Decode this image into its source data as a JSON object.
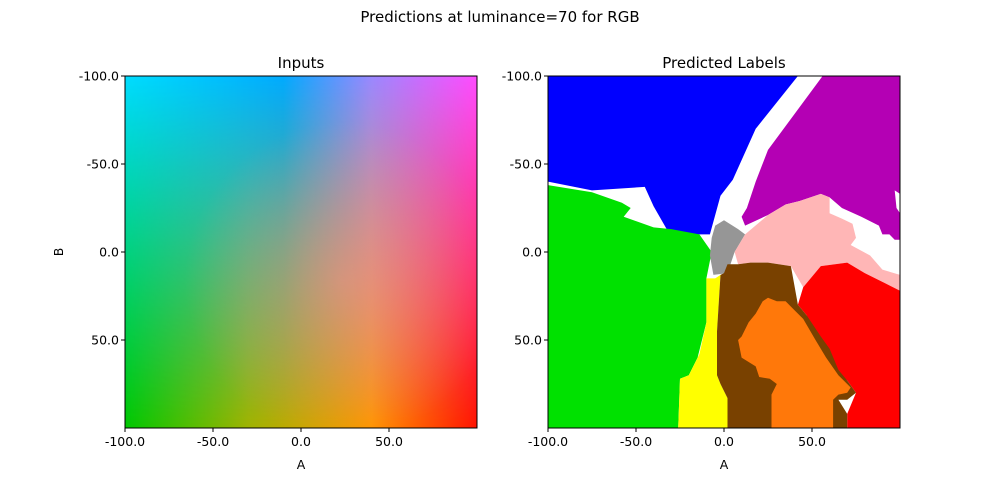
{
  "chart_data": [
    {
      "type": "heatmap",
      "suptitle": "Predictions at luminance=70 for RGB",
      "title": "Inputs",
      "xlabel": "A",
      "ylabel": "B",
      "xlim": [
        -100,
        100
      ],
      "ylim": [
        100,
        -100
      ],
      "xticks": [
        "-100.0",
        "-50.0",
        "0.0",
        "50.0"
      ],
      "yticks": [
        "-100.0",
        "-50.0",
        "0.0",
        "50.0"
      ],
      "xtick_values": [
        -100,
        -50,
        0,
        50
      ],
      "ytick_values": [
        -100,
        -50,
        0,
        50
      ],
      "corner_colors": {
        "top_left": "#00dcff",
        "top_right": "#ff4cff",
        "bottom_left": "#00c800",
        "bottom_right": "#ff1400"
      }
    },
    {
      "type": "heatmap",
      "title": "Predicted Labels",
      "xlabel": "A",
      "ylabel": "",
      "xlim": [
        -100,
        100
      ],
      "ylim": [
        100,
        -100
      ],
      "xticks": [
        "-100.0",
        "-50.0",
        "0.0",
        "50.0"
      ],
      "yticks": [
        "-100.0",
        "-50.0",
        "0.0",
        "50.0"
      ],
      "xtick_values": [
        -100,
        -50,
        0,
        50
      ],
      "ytick_values": [
        -100,
        -50,
        0,
        50
      ],
      "regions": [
        {
          "label": "blue",
          "color": "#0000ff",
          "polygon": [
            [
              -100,
              -100
            ],
            [
              42,
              -100
            ],
            [
              18,
              -70
            ],
            [
              5,
              -41
            ],
            [
              -2,
              -32
            ],
            [
              -8,
              -10
            ],
            [
              -30,
              -10
            ],
            [
              -32,
              -12
            ],
            [
              -40,
              -26
            ],
            [
              -45,
              -37
            ],
            [
              -75,
              -35
            ],
            [
              -100,
              -40
            ]
          ]
        },
        {
          "label": "purple",
          "color": "#b400b4",
          "polygon": [
            [
              56,
              -100
            ],
            [
              100,
              -100
            ],
            [
              100,
              -33
            ],
            [
              97,
              -35
            ],
            [
              98,
              -25
            ],
            [
              100,
              -22
            ],
            [
              100,
              -7
            ],
            [
              97,
              -7
            ],
            [
              94,
              -10
            ],
            [
              90,
              -10
            ],
            [
              88,
              -15
            ],
            [
              78,
              -20
            ],
            [
              67,
              -25
            ],
            [
              60,
              -31
            ],
            [
              55,
              -33
            ],
            [
              43,
              -29
            ],
            [
              35,
              -27
            ],
            [
              25,
              -21
            ],
            [
              12,
              -15
            ],
            [
              10,
              -20
            ],
            [
              13,
              -25
            ],
            [
              18,
              -40
            ],
            [
              25,
              -58
            ]
          ]
        },
        {
          "label": "green",
          "color": "#00e100",
          "polygon": [
            [
              -100,
              -38
            ],
            [
              -75,
              -34
            ],
            [
              -58,
              -28
            ],
            [
              -53,
              -25
            ],
            [
              -57,
              -20
            ],
            [
              -40,
              -14
            ],
            [
              -30,
              -13
            ],
            [
              -14,
              -10
            ],
            [
              -7,
              0
            ],
            [
              -10,
              15
            ],
            [
              -10,
              40
            ],
            [
              -15,
              60
            ],
            [
              -20,
              70
            ],
            [
              -25,
              72
            ],
            [
              -26,
              100
            ],
            [
              -100,
              100
            ]
          ]
        },
        {
          "label": "gray",
          "color": "#969696",
          "polygon": [
            [
              -5,
              -15
            ],
            [
              0,
              -18
            ],
            [
              8,
              -13
            ],
            [
              12,
              -10
            ],
            [
              6,
              0
            ],
            [
              2,
              12
            ],
            [
              -6,
              13
            ],
            [
              -8,
              2
            ],
            [
              -7,
              -8
            ]
          ]
        },
        {
          "label": "pink",
          "color": "#ffb6b6",
          "polygon": [
            [
              12,
              -10
            ],
            [
              25,
              -21
            ],
            [
              35,
              -27
            ],
            [
              43,
              -29
            ],
            [
              55,
              -33
            ],
            [
              60,
              -31
            ],
            [
              60,
              -22
            ],
            [
              67,
              -19
            ],
            [
              73,
              -16
            ],
            [
              75,
              -8
            ],
            [
              72,
              -4
            ],
            [
              83,
              2
            ],
            [
              90,
              10
            ],
            [
              100,
              13
            ],
            [
              100,
              22
            ],
            [
              95,
              20
            ],
            [
              90,
              17
            ],
            [
              80,
              12
            ],
            [
              70,
              6
            ],
            [
              55,
              8
            ],
            [
              45,
              20
            ],
            [
              38,
              8
            ],
            [
              25,
              6
            ],
            [
              15,
              6
            ],
            [
              8,
              7
            ],
            [
              6,
              0
            ]
          ]
        },
        {
          "label": "red",
          "color": "#ff0000",
          "polygon": [
            [
              45,
              20
            ],
            [
              55,
              8
            ],
            [
              70,
              6
            ],
            [
              80,
              12
            ],
            [
              90,
              17
            ],
            [
              100,
              22
            ],
            [
              100,
              100
            ],
            [
              70,
              100
            ],
            [
              70,
              92
            ],
            [
              75,
              80
            ],
            [
              70,
              73
            ],
            [
              63,
              67
            ],
            [
              55,
              60
            ],
            [
              50,
              48
            ],
            [
              47,
              36
            ],
            [
              42,
              30
            ]
          ]
        },
        {
          "label": "yellow",
          "color": "#ffff00",
          "polygon": [
            [
              -5,
              15
            ],
            [
              -2,
              13
            ],
            [
              -4,
              45
            ],
            [
              -4,
              70
            ],
            [
              -2,
              75
            ],
            [
              2,
              83
            ],
            [
              2,
              100
            ],
            [
              -26,
              100
            ],
            [
              -25,
              72
            ],
            [
              -20,
              70
            ],
            [
              -14,
              58
            ],
            [
              -10,
              40
            ],
            [
              -10,
              15
            ]
          ]
        },
        {
          "label": "brown",
          "color": "#794100",
          "polygon": [
            [
              0,
              12
            ],
            [
              2,
              7
            ],
            [
              8,
              7
            ],
            [
              15,
              6
            ],
            [
              25,
              6
            ],
            [
              38,
              8
            ],
            [
              42,
              30
            ],
            [
              47,
              36
            ],
            [
              55,
              48
            ],
            [
              60,
              55
            ],
            [
              65,
              67
            ],
            [
              70,
              73
            ],
            [
              75,
              80
            ],
            [
              70,
              84
            ],
            [
              65,
              84
            ],
            [
              70,
              92
            ],
            [
              70,
              100
            ],
            [
              2,
              100
            ],
            [
              2,
              83
            ],
            [
              -2,
              75
            ],
            [
              -4,
              70
            ],
            [
              -4,
              45
            ],
            [
              -2,
              13
            ]
          ]
        },
        {
          "label": "orange",
          "color": "#ff780a",
          "polygon": [
            [
              25,
              26
            ],
            [
              30,
              28
            ],
            [
              35,
              28
            ],
            [
              40,
              33
            ],
            [
              45,
              38
            ],
            [
              52,
              50
            ],
            [
              58,
              60
            ],
            [
              65,
              70
            ],
            [
              72,
              77
            ],
            [
              70,
              80
            ],
            [
              65,
              81
            ],
            [
              62,
              84
            ],
            [
              62,
              100
            ],
            [
              27,
              100
            ],
            [
              27,
              81
            ],
            [
              30,
              75
            ],
            [
              26,
              72
            ],
            [
              20,
              71
            ],
            [
              18,
              65
            ],
            [
              10,
              60
            ],
            [
              8,
              50
            ],
            [
              10,
              48
            ],
            [
              14,
              40
            ],
            [
              18,
              35
            ],
            [
              22,
              28
            ]
          ]
        }
      ]
    }
  ]
}
